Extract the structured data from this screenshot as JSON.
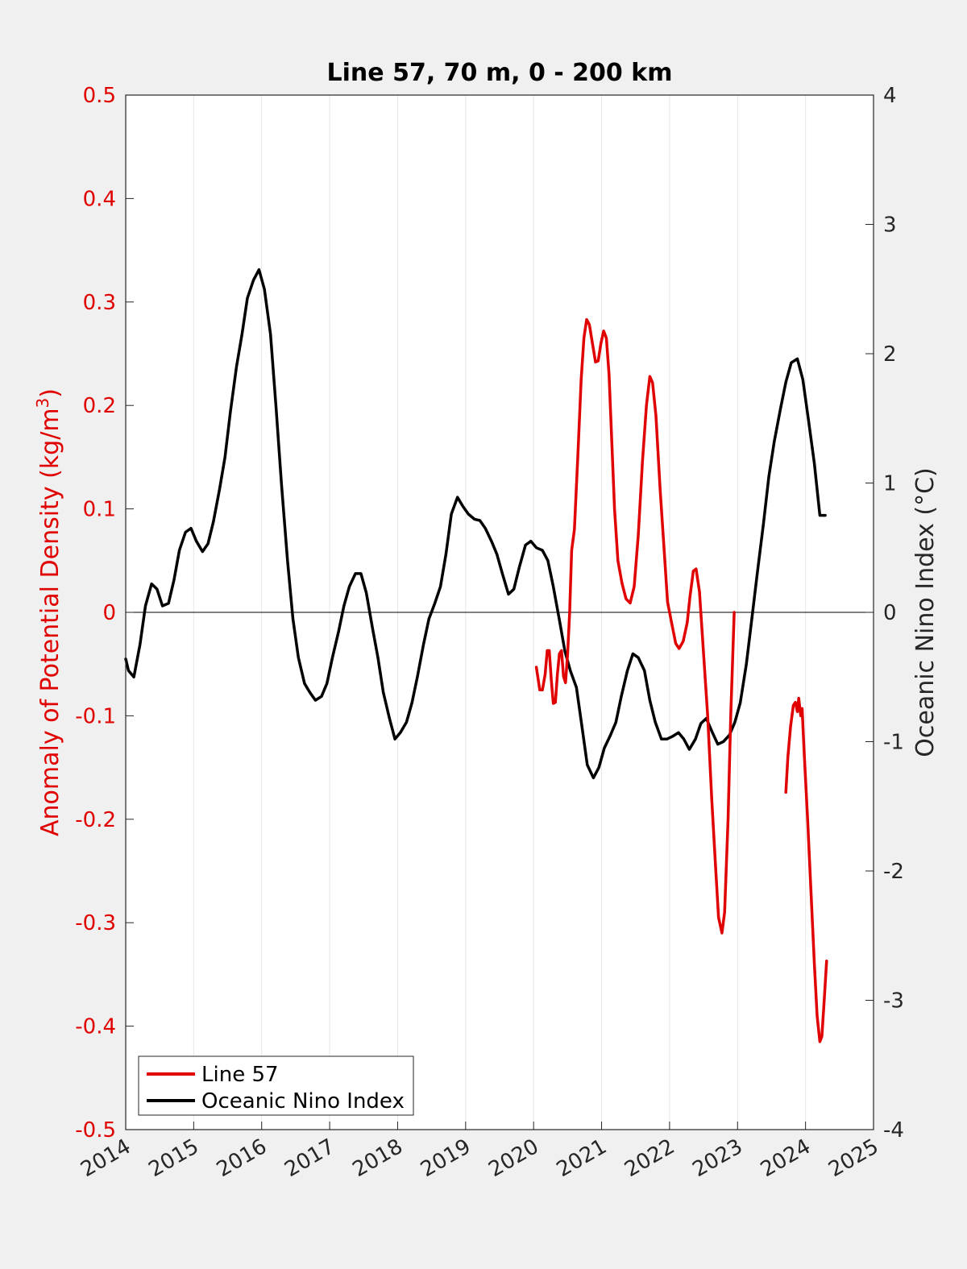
{
  "chart_data": {
    "type": "line",
    "title": "Line 57, 70 m, 0 - 200 km",
    "ylabel_left_prefix": "Anomaly of Potential Density (kg/m",
    "ylabel_left_sup": "3",
    "ylabel_left_suffix": ")",
    "ylabel_right": "Oceanic Nino Index (°C)",
    "xlim": [
      2014,
      2025
    ],
    "ylim_left": [
      -0.5,
      0.5
    ],
    "ylim_right": [
      -4,
      4
    ],
    "x_ticks": [
      "2014",
      "2015",
      "2016",
      "2017",
      "2018",
      "2019",
      "2020",
      "2021",
      "2022",
      "2023",
      "2024",
      "2025"
    ],
    "x_tick_values": [
      2014,
      2015,
      2016,
      2017,
      2018,
      2019,
      2020,
      2021,
      2022,
      2023,
      2024,
      2025
    ],
    "y_left_ticks": [
      "0.5",
      "0.4",
      "0.3",
      "0.2",
      "0.1",
      "0",
      "-0.1",
      "-0.2",
      "-0.3",
      "-0.4",
      "-0.5"
    ],
    "y_left_tick_values": [
      0.5,
      0.4,
      0.3,
      0.2,
      0.1,
      0,
      -0.1,
      -0.2,
      -0.3,
      -0.4,
      -0.5
    ],
    "y_right_ticks": [
      "4",
      "3",
      "2",
      "1",
      "0",
      "-1",
      "-2",
      "-3",
      "-4"
    ],
    "y_right_tick_values": [
      4,
      3,
      2,
      1,
      0,
      -1,
      -2,
      -3,
      -4
    ],
    "grid": "vertical",
    "zero_line": true,
    "legend_position": "bottom-left",
    "colors": {
      "line57": "#e00000",
      "oni": "#000000",
      "left_axis": "#e00000",
      "right_axis": "#262626"
    },
    "series": [
      {
        "name": "Line 57",
        "axis": "left",
        "segments": [
          [
            [
              2020.04,
              -0.053
            ],
            [
              2020.09,
              -0.075
            ],
            [
              2020.13,
              -0.075
            ],
            [
              2020.17,
              -0.06
            ],
            [
              2020.2,
              -0.037
            ],
            [
              2020.23,
              -0.037
            ],
            [
              2020.26,
              -0.065
            ],
            [
              2020.29,
              -0.088
            ],
            [
              2020.32,
              -0.087
            ],
            [
              2020.35,
              -0.06
            ],
            [
              2020.38,
              -0.04
            ],
            [
              2020.41,
              -0.037
            ],
            [
              2020.44,
              -0.062
            ],
            [
              2020.47,
              -0.068
            ],
            [
              2020.5,
              -0.04
            ],
            [
              2020.53,
              0.0
            ],
            [
              2020.56,
              0.06
            ],
            [
              2020.6,
              0.08
            ],
            [
              2020.65,
              0.15
            ],
            [
              2020.7,
              0.225
            ],
            [
              2020.74,
              0.265
            ],
            [
              2020.78,
              0.283
            ],
            [
              2020.82,
              0.278
            ],
            [
              2020.87,
              0.258
            ],
            [
              2020.91,
              0.242
            ],
            [
              2020.95,
              0.243
            ],
            [
              2020.99,
              0.26
            ],
            [
              2021.03,
              0.272
            ],
            [
              2021.07,
              0.265
            ],
            [
              2021.11,
              0.23
            ],
            [
              2021.15,
              0.165
            ],
            [
              2021.19,
              0.1
            ],
            [
              2021.24,
              0.05
            ],
            [
              2021.3,
              0.028
            ],
            [
              2021.36,
              0.013
            ],
            [
              2021.42,
              0.009
            ],
            [
              2021.48,
              0.025
            ],
            [
              2021.54,
              0.075
            ],
            [
              2021.6,
              0.145
            ],
            [
              2021.66,
              0.2
            ],
            [
              2021.71,
              0.228
            ],
            [
              2021.75,
              0.222
            ],
            [
              2021.8,
              0.19
            ],
            [
              2021.86,
              0.12
            ],
            [
              2021.92,
              0.06
            ],
            [
              2021.97,
              0.01
            ],
            [
              2022.03,
              -0.01
            ],
            [
              2022.09,
              -0.03
            ],
            [
              2022.14,
              -0.035
            ],
            [
              2022.2,
              -0.028
            ],
            [
              2022.26,
              -0.01
            ],
            [
              2022.3,
              0.015
            ],
            [
              2022.35,
              0.04
            ],
            [
              2022.39,
              0.042
            ],
            [
              2022.44,
              0.02
            ],
            [
              2022.5,
              -0.04
            ],
            [
              2022.56,
              -0.1
            ],
            [
              2022.62,
              -0.18
            ],
            [
              2022.68,
              -0.25
            ],
            [
              2022.72,
              -0.295
            ],
            [
              2022.77,
              -0.31
            ],
            [
              2022.81,
              -0.29
            ],
            [
              2022.86,
              -0.2
            ],
            [
              2022.9,
              -0.1
            ],
            [
              2022.93,
              -0.04
            ],
            [
              2022.95,
              0.0
            ]
          ],
          [
            [
              2023.71,
              -0.174
            ],
            [
              2023.74,
              -0.14
            ],
            [
              2023.78,
              -0.11
            ],
            [
              2023.82,
              -0.09
            ],
            [
              2023.85,
              -0.087
            ],
            [
              2023.88,
              -0.096
            ],
            [
              2023.9,
              -0.083
            ],
            [
              2023.93,
              -0.1
            ],
            [
              2023.95,
              -0.093
            ],
            [
              2023.98,
              -0.135
            ],
            [
              2024.03,
              -0.2
            ],
            [
              2024.08,
              -0.27
            ],
            [
              2024.13,
              -0.34
            ],
            [
              2024.17,
              -0.39
            ],
            [
              2024.21,
              -0.415
            ],
            [
              2024.24,
              -0.41
            ],
            [
              2024.27,
              -0.38
            ],
            [
              2024.31,
              -0.337
            ]
          ]
        ]
      },
      {
        "name": "Oceanic Nino Index",
        "axis": "right",
        "x": [
          2014.0,
          2014.04,
          2014.12,
          2014.21,
          2014.29,
          2014.38,
          2014.46,
          2014.54,
          2014.63,
          2014.71,
          2014.79,
          2014.88,
          2014.96,
          2015.04,
          2015.13,
          2015.21,
          2015.29,
          2015.38,
          2015.46,
          2015.54,
          2015.63,
          2015.71,
          2015.79,
          2015.88,
          2015.96,
          2016.04,
          2016.13,
          2016.21,
          2016.29,
          2016.38,
          2016.46,
          2016.54,
          2016.63,
          2016.71,
          2016.79,
          2016.88,
          2016.96,
          2017.04,
          2017.13,
          2017.21,
          2017.29,
          2017.38,
          2017.46,
          2017.54,
          2017.63,
          2017.71,
          2017.79,
          2017.88,
          2017.96,
          2018.04,
          2018.13,
          2018.21,
          2018.29,
          2018.38,
          2018.46,
          2018.54,
          2018.63,
          2018.71,
          2018.79,
          2018.88,
          2018.96,
          2019.04,
          2019.13,
          2019.21,
          2019.29,
          2019.38,
          2019.46,
          2019.54,
          2019.63,
          2019.71,
          2019.79,
          2019.88,
          2019.96,
          2020.04,
          2020.13,
          2020.21,
          2020.29,
          2020.38,
          2020.46,
          2020.54,
          2020.63,
          2020.71,
          2020.79,
          2020.88,
          2020.96,
          2021.04,
          2021.13,
          2021.21,
          2021.29,
          2021.38,
          2021.46,
          2021.54,
          2021.63,
          2021.71,
          2021.79,
          2021.88,
          2021.96,
          2022.04,
          2022.13,
          2022.21,
          2022.29,
          2022.38,
          2022.46,
          2022.54,
          2022.63,
          2022.71,
          2022.79,
          2022.88,
          2022.96,
          2023.04,
          2023.13,
          2023.21,
          2023.29,
          2023.38,
          2023.46,
          2023.54,
          2023.63,
          2023.71,
          2023.79,
          2023.88,
          2023.96,
          2024.04,
          2024.13,
          2024.21,
          2024.29
        ],
        "values": [
          -0.36,
          -0.45,
          -0.5,
          -0.25,
          0.05,
          0.22,
          0.18,
          0.05,
          0.07,
          0.25,
          0.48,
          0.62,
          0.65,
          0.55,
          0.47,
          0.53,
          0.7,
          0.95,
          1.2,
          1.55,
          1.9,
          2.15,
          2.43,
          2.57,
          2.65,
          2.5,
          2.15,
          1.6,
          1.0,
          0.4,
          -0.05,
          -0.35,
          -0.55,
          -0.62,
          -0.68,
          -0.65,
          -0.55,
          -0.35,
          -0.15,
          0.05,
          0.2,
          0.3,
          0.3,
          0.15,
          -0.12,
          -0.35,
          -0.62,
          -0.82,
          -0.98,
          -0.93,
          -0.85,
          -0.7,
          -0.5,
          -0.25,
          -0.05,
          0.06,
          0.2,
          0.45,
          0.76,
          0.89,
          0.82,
          0.76,
          0.72,
          0.71,
          0.65,
          0.55,
          0.45,
          0.3,
          0.14,
          0.18,
          0.35,
          0.52,
          0.55,
          0.5,
          0.48,
          0.4,
          0.2,
          -0.06,
          -0.3,
          -0.45,
          -0.58,
          -0.88,
          -1.18,
          -1.28,
          -1.2,
          -1.05,
          -0.95,
          -0.85,
          -0.65,
          -0.45,
          -0.32,
          -0.35,
          -0.45,
          -0.68,
          -0.85,
          -0.98,
          -0.98,
          -0.96,
          -0.93,
          -0.98,
          -1.06,
          -0.98,
          -0.86,
          -0.82,
          -0.93,
          -1.02,
          -1.0,
          -0.95,
          -0.85,
          -0.7,
          -0.4,
          -0.05,
          0.3,
          0.68,
          1.05,
          1.32,
          1.57,
          1.78,
          1.93,
          1.96,
          1.8,
          1.5,
          1.15,
          0.75,
          0.75
        ]
      }
    ]
  },
  "legend": {
    "items": [
      {
        "label": "Line 57",
        "color": "#e00000"
      },
      {
        "label": "Oceanic Nino Index",
        "color": "#000000"
      }
    ]
  }
}
